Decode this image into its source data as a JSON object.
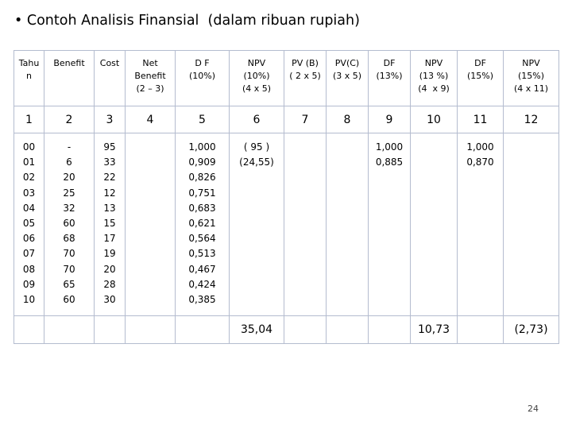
{
  "header": {
    "title": "• Contoh Analisis Finansial  (dalam ribuan rupiah)"
  },
  "table": {
    "columns": [
      [
        "Tahu",
        "n"
      ],
      [
        "Benefit"
      ],
      [
        "Cost"
      ],
      [
        "Net",
        "Benefit",
        "(2 – 3)"
      ],
      [
        "D F",
        "(10%)"
      ],
      [
        "NPV",
        "(10%)",
        "(4 x 5)"
      ],
      [
        "PV (B)",
        "( 2 x 5)"
      ],
      [
        "PV(C)",
        "(3 x 5)"
      ],
      [
        "DF",
        "(13%)"
      ],
      [
        "NPV",
        "(13 %)",
        "(4  x 9)"
      ],
      [
        "DF",
        "(15%)"
      ],
      [
        "NPV",
        "(15%)",
        "(4 x 11)"
      ]
    ],
    "numbers": [
      1,
      2,
      3,
      4,
      5,
      6,
      7,
      8,
      9,
      10,
      11,
      12
    ],
    "data": [
      [
        "00",
        "01",
        "02",
        "03",
        "04",
        "05",
        "06",
        "07",
        "08",
        "09",
        "10"
      ],
      [
        "-",
        "6",
        "20",
        "25",
        "32",
        "60",
        "68",
        "70",
        "70",
        "65",
        "60"
      ],
      [
        "95",
        "33",
        "22",
        "12",
        "13",
        "15",
        "17",
        "19",
        "20",
        "28",
        "30"
      ],
      [],
      [
        "1,000",
        "0,909",
        "0,826",
        "0,751",
        "0,683",
        "0,621",
        "0,564",
        "0,513",
        "0,467",
        "0,424",
        "0,385"
      ],
      [
        "( 95 )",
        "(24,55)"
      ],
      [],
      [],
      [
        "1,000",
        "0,885"
      ],
      [],
      [
        "1,000",
        "0,870"
      ],
      []
    ],
    "totals": [
      null,
      null,
      null,
      null,
      null,
      "35,04",
      null,
      null,
      null,
      "10,73",
      null,
      "(2,73)"
    ]
  },
  "footer": {
    "page": "24"
  }
}
